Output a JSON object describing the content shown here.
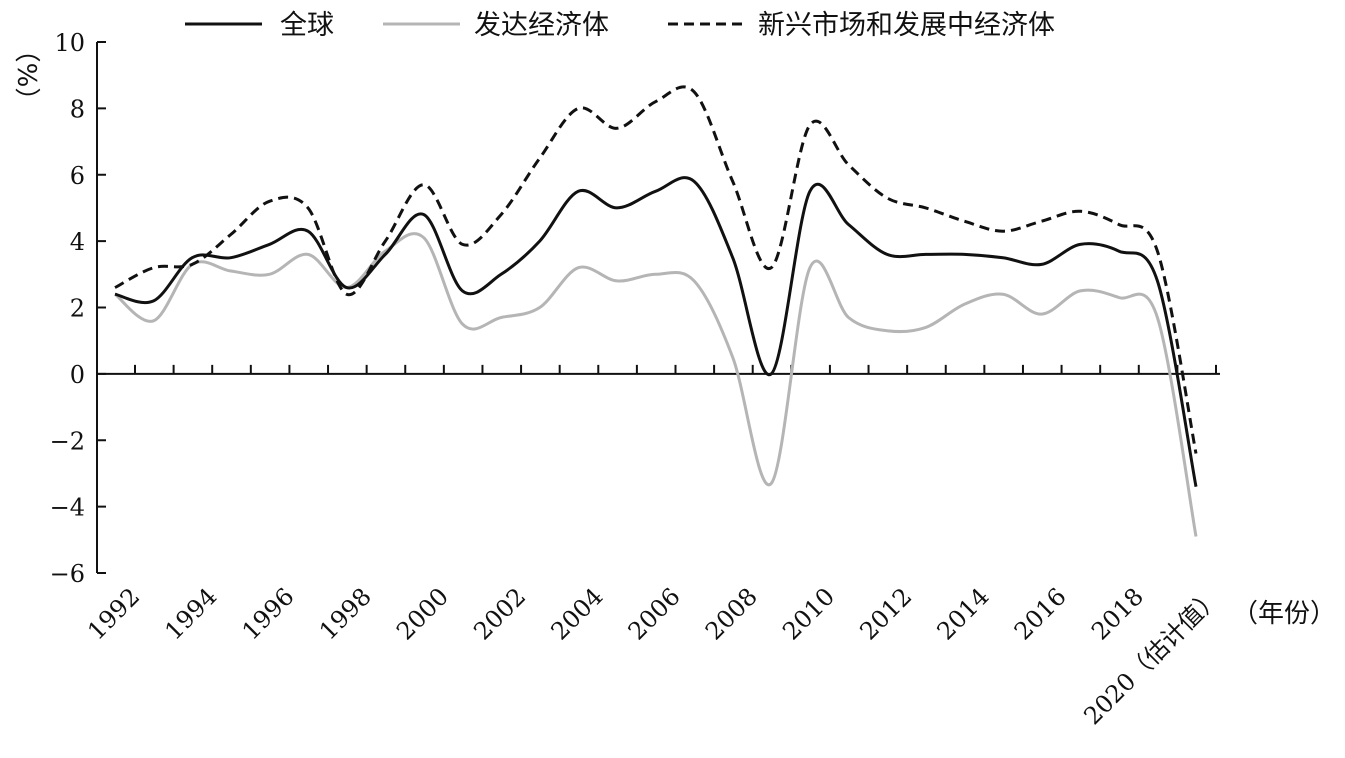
{
  "chart_data": {
    "type": "line",
    "title": "",
    "ylabel": "（%）",
    "xlabel": "（年份）",
    "ylim": [
      -6,
      10
    ],
    "yticks": [
      -6,
      -4,
      -2,
      0,
      2,
      4,
      6,
      8,
      10
    ],
    "ytick_labels": [
      "−6",
      "−4",
      "−2",
      "0",
      "2",
      "4",
      "6",
      "8",
      "10"
    ],
    "xtick_positions": [
      1992,
      1994,
      1996,
      1998,
      2000,
      2002,
      2004,
      2006,
      2008,
      2010,
      2012,
      2014,
      2016,
      2018,
      2020
    ],
    "xtick_labels": [
      "1992",
      "1994",
      "1996",
      "1998",
      "2000",
      "2002",
      "2004",
      "2006",
      "2008",
      "2010",
      "2012",
      "2014",
      "2016",
      "2018",
      "2020（估计值）"
    ],
    "legend_position": "top",
    "x": [
      1992,
      1993,
      1994,
      1995,
      1996,
      1997,
      1998,
      1999,
      2000,
      2001,
      2002,
      2003,
      2004,
      2005,
      2006,
      2007,
      2008,
      2009,
      2010,
      2011,
      2012,
      2013,
      2014,
      2015,
      2016,
      2017,
      2018,
      2019,
      2020
    ],
    "series": [
      {
        "name": "全球",
        "style": "solid",
        "color": "#111111",
        "values": [
          2.4,
          2.2,
          3.5,
          3.5,
          3.9,
          4.3,
          2.6,
          3.6,
          4.8,
          2.5,
          3.0,
          4.0,
          5.5,
          5.0,
          5.5,
          5.8,
          3.5,
          0.0,
          5.5,
          4.5,
          3.6,
          3.6,
          3.6,
          3.5,
          3.3,
          3.9,
          3.7,
          2.8,
          -3.4
        ]
      },
      {
        "name": "发达经济体",
        "style": "solid",
        "color": "#b5b5b5",
        "values": [
          2.4,
          1.6,
          3.3,
          3.1,
          3.0,
          3.6,
          2.6,
          3.7,
          4.1,
          1.5,
          1.7,
          2.0,
          3.2,
          2.8,
          3.0,
          2.8,
          0.5,
          -3.3,
          3.2,
          1.7,
          1.3,
          1.4,
          2.1,
          2.4,
          1.8,
          2.5,
          2.3,
          1.7,
          -4.9
        ]
      },
      {
        "name": "新兴市场和发展中经济体",
        "style": "dashed",
        "color": "#111111",
        "values": [
          2.6,
          3.2,
          3.3,
          4.2,
          5.2,
          5.0,
          2.4,
          4.0,
          5.7,
          3.9,
          4.8,
          6.5,
          8.0,
          7.4,
          8.2,
          8.5,
          5.8,
          3.2,
          7.5,
          6.3,
          5.3,
          5.0,
          4.6,
          4.3,
          4.6,
          4.9,
          4.5,
          3.7,
          -2.4
        ]
      }
    ]
  }
}
